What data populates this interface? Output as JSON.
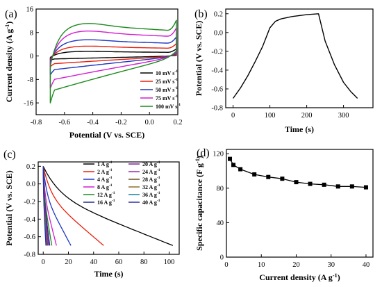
{
  "chart_data": [
    {
      "panel": "(a)",
      "type": "line",
      "xlabel": "Potential (V vs. SCE)",
      "ylabel": "Current density (A g",
      "ylabel_sup": "-1",
      "ylabel_end": ")",
      "xlim": [
        -0.8,
        0.2
      ],
      "ylim": [
        -20,
        16
      ],
      "xticks": [
        "-0.8",
        "-0.6",
        "-0.4",
        "-0.2",
        "0.0",
        "0.2"
      ],
      "xtick_values": [
        -0.8,
        -0.6,
        -0.4,
        -0.2,
        0.0,
        0.2
      ],
      "yticks": [
        "-16",
        "-8",
        "0",
        "8",
        "16"
      ],
      "ytick_values": [
        -16,
        -8,
        0,
        8,
        16
      ],
      "legend_position": "bottom-right",
      "series": [
        {
          "name": "10 mV s",
          "sup": "-1",
          "color": "#000000",
          "top": 1.6,
          "bottom": -1.4
        },
        {
          "name": "25 mV s",
          "sup": "-1",
          "color": "#e8200e",
          "top": 3.4,
          "bottom": -3.6
        },
        {
          "name": "50 mV s",
          "sup": "-1",
          "color": "#1f36c0",
          "top": 5.6,
          "bottom": -6.4
        },
        {
          "name": "75 mV s",
          "sup": "-1",
          "color": "#d21cd2",
          "top": 8.6,
          "bottom": -11.0
        },
        {
          "name": "100 mV s",
          "sup": "-1",
          "color": "#1c8a1c",
          "top": 11.2,
          "bottom": -16.0
        }
      ]
    },
    {
      "panel": "(b)",
      "type": "line",
      "xlabel": "Time (s)",
      "ylabel": "Potential (V vs. SCE)",
      "xlim": [
        -20,
        380
      ],
      "ylim": [
        -0.8,
        0.25
      ],
      "xticks": [
        "0",
        "100",
        "200",
        "300"
      ],
      "xtick_values": [
        0,
        100,
        200,
        300
      ],
      "yticks": [
        "-0.8",
        "-0.6",
        "-0.4",
        "-0.2",
        "0.0",
        "0.2"
      ],
      "ytick_values": [
        -0.8,
        -0.6,
        -0.4,
        -0.2,
        0.0,
        0.2
      ],
      "series": [
        {
          "color": "#000000",
          "x": [
            0,
            20,
            40,
            60,
            80,
            100,
            115,
            130,
            160,
            200,
            232,
            250,
            275,
            300,
            320,
            338
          ],
          "y": [
            -0.7,
            -0.59,
            -0.46,
            -0.31,
            -0.15,
            0.05,
            0.12,
            0.145,
            0.17,
            0.19,
            0.2,
            -0.09,
            -0.34,
            -0.53,
            -0.63,
            -0.7
          ]
        }
      ]
    },
    {
      "panel": "(c)",
      "type": "line",
      "xlabel": "Time (s)",
      "ylabel": "Potential (V vs. SCE)",
      "xlim": [
        -4,
        108
      ],
      "ylim": [
        -0.8,
        0.25
      ],
      "xticks": [
        "0",
        "20",
        "40",
        "60",
        "80",
        "100"
      ],
      "xtick_values": [
        0,
        20,
        40,
        60,
        80,
        100
      ],
      "yticks": [
        "-0.8",
        "-0.6",
        "-0.4",
        "-0.2",
        "0.0",
        "0.2"
      ],
      "ytick_values": [
        -0.8,
        -0.6,
        -0.4,
        -0.2,
        0.0,
        0.2
      ],
      "legend_position": "top-right",
      "series": [
        {
          "name": "1 A g",
          "sup": "-1",
          "color": "#000000",
          "t_end": 103
        },
        {
          "name": "2 A g",
          "sup": "-1",
          "color": "#e8200e",
          "t_end": 48
        },
        {
          "name": "4 A g",
          "sup": "-1",
          "color": "#1f36c0",
          "t_end": 22
        },
        {
          "name": "8 A g",
          "sup": "-1",
          "color": "#d21cd2",
          "t_end": 10.5
        },
        {
          "name": "12 A g",
          "sup": "-1",
          "color": "#1c8a1c",
          "t_end": 6.8
        },
        {
          "name": "16 A g",
          "sup": "-1",
          "color": "#1f2a8a",
          "t_end": 5.2
        },
        {
          "name": "20 A g",
          "sup": "-1",
          "color": "#7b1fa2",
          "t_end": 4.3
        },
        {
          "name": "24 A g",
          "sup": "-1",
          "color": "#9c27b0",
          "t_end": 3.6
        },
        {
          "name": "28 A g",
          "sup": "-1",
          "color": "#6d4c1f",
          "t_end": 3.1
        },
        {
          "name": "32 A g",
          "sup": "-1",
          "color": "#8d6e2a",
          "t_end": 2.7
        },
        {
          "name": "36 A g",
          "sup": "-1",
          "color": "#1a7fa0",
          "t_end": 2.4
        },
        {
          "name": "40 A g",
          "sup": "-1",
          "color": "#2e2ea0",
          "t_end": 2.1
        }
      ]
    },
    {
      "panel": "(d)",
      "type": "line",
      "xlabel": "Current density (A g",
      "xlabel_sup": "-1",
      "xlabel_end": ")",
      "ylabel": "Specific capacitance (F g",
      "ylabel_sup": "-1",
      "ylabel_end": ")",
      "xlim": [
        0,
        42
      ],
      "ylim": [
        0,
        125
      ],
      "xticks": [
        "0",
        "10",
        "20",
        "30",
        "40"
      ],
      "xtick_values": [
        0,
        10,
        20,
        30,
        40
      ],
      "yticks": [
        "0",
        "40",
        "80",
        "120"
      ],
      "ytick_values": [
        0,
        40,
        80,
        120
      ],
      "series": [
        {
          "color": "#000000",
          "marker": "square",
          "x": [
            1,
            2,
            4,
            8,
            12,
            16,
            20,
            24,
            28,
            32,
            36,
            40
          ],
          "y": [
            114,
            107,
            102,
            96,
            93,
            91,
            87,
            85,
            84,
            82,
            82,
            81
          ]
        }
      ]
    }
  ]
}
